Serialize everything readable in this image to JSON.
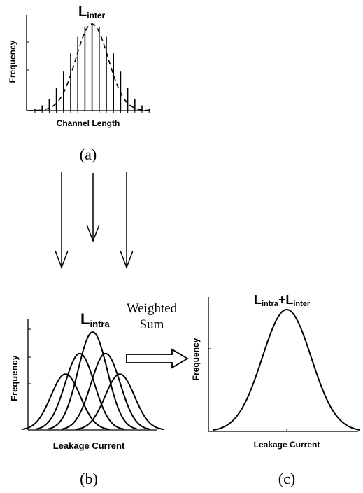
{
  "panel_a": {
    "label_main": "L",
    "label_sub": "inter",
    "ylabel": "Frequency",
    "xlabel": "Channel Length",
    "caption": "(a)",
    "stem_heights": [
      0.02,
      0.06,
      0.13,
      0.26,
      0.45,
      0.66,
      0.85,
      0.97,
      1.0,
      0.97,
      0.85,
      0.66,
      0.45,
      0.26,
      0.13,
      0.06,
      0.02
    ]
  },
  "panel_b": {
    "label_main": "L",
    "label_sub": "intra",
    "ylabel": "Frequency",
    "xlabel": "Leakage Current",
    "caption": "(b)",
    "curves": [
      {
        "center": -0.42,
        "height": 0.57
      },
      {
        "center": -0.2,
        "height": 0.78
      },
      {
        "center": 0.0,
        "height": 1.0
      },
      {
        "center": 0.2,
        "height": 0.78
      },
      {
        "center": 0.42,
        "height": 0.57
      }
    ]
  },
  "weighted_sum": {
    "line1": "Weighted",
    "line2": "Sum"
  },
  "panel_c": {
    "label_a_main": "L",
    "label_a_sub": "intra",
    "plus": "+",
    "label_b_main": "L",
    "label_b_sub": "inter",
    "ylabel": "Frequency",
    "xlabel": "Leakage Current",
    "caption": "(c)"
  }
}
